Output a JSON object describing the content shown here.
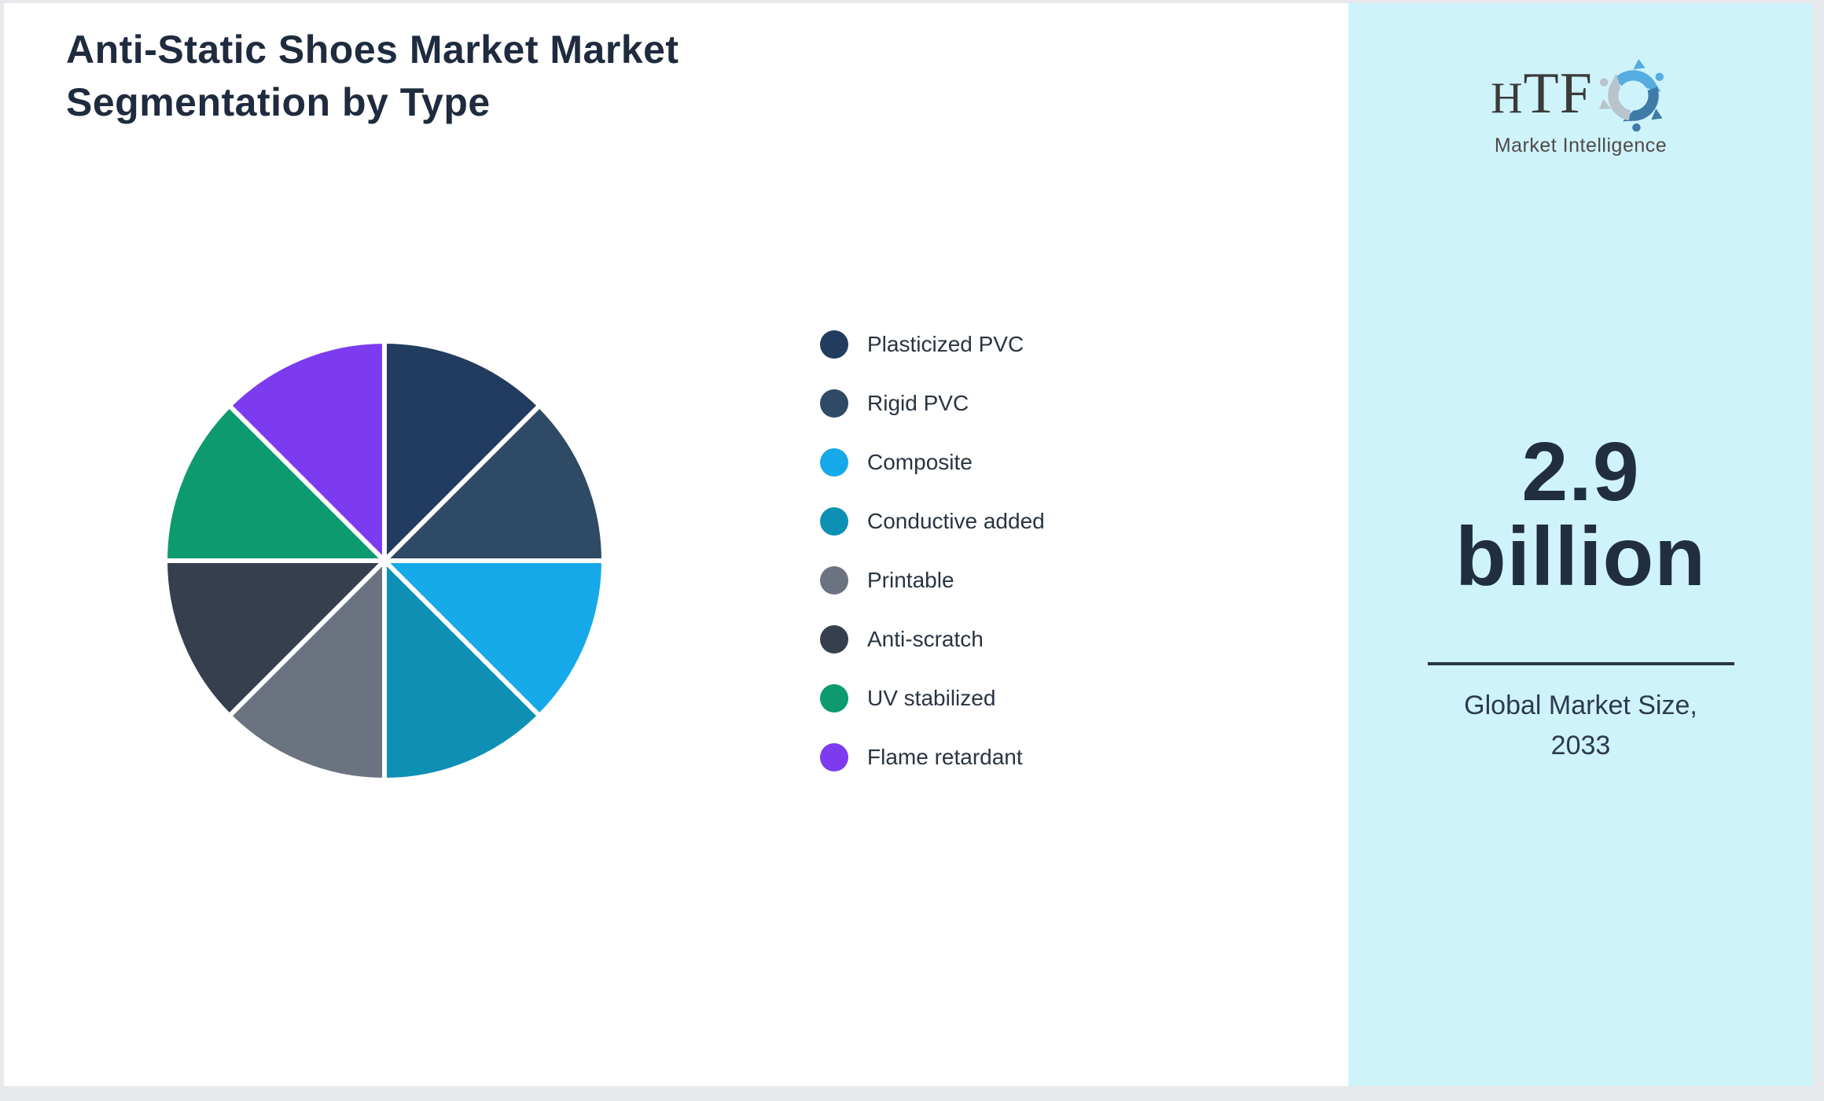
{
  "header": {
    "title_line1": "Anti-Static Shoes Market Market",
    "title_line2": "Segmentation by Type"
  },
  "chart_data": {
    "type": "pie",
    "title": "Anti-Static Shoes Market Market Segmentation by Type",
    "categories": [
      "Plasticized PVC",
      "Rigid PVC",
      "Composite",
      "Conductive added",
      "Printable",
      "Anti-scratch",
      "UV stabilized",
      "Flame retardant"
    ],
    "values": [
      12.5,
      12.5,
      12.5,
      12.5,
      12.5,
      12.5,
      12.5,
      12.5
    ],
    "colors": [
      "#213c5f",
      "#2f4a64",
      "#16a9e9",
      "#0e90b5",
      "#6b7380",
      "#363f4e",
      "#0d9a6e",
      "#7d3bf0"
    ],
    "legend_position": "right",
    "start_angle_deg": -90,
    "direction": "clockwise",
    "slice_labels_shown": false,
    "slice_gap_color": "#ffffff"
  },
  "sidebar": {
    "background_color": "#cff3fb",
    "logo": {
      "brand": "HTF",
      "subtitle": "Market Intelligence",
      "mark_colors": [
        "#55ace0",
        "#3e7ba6",
        "#b9c3cc"
      ]
    },
    "stat": {
      "value_line1": "2.9",
      "value_line2": "billion",
      "caption_line1": "Global Market Size,",
      "caption_line2": "2033"
    },
    "divider_color": "#2a3547"
  }
}
